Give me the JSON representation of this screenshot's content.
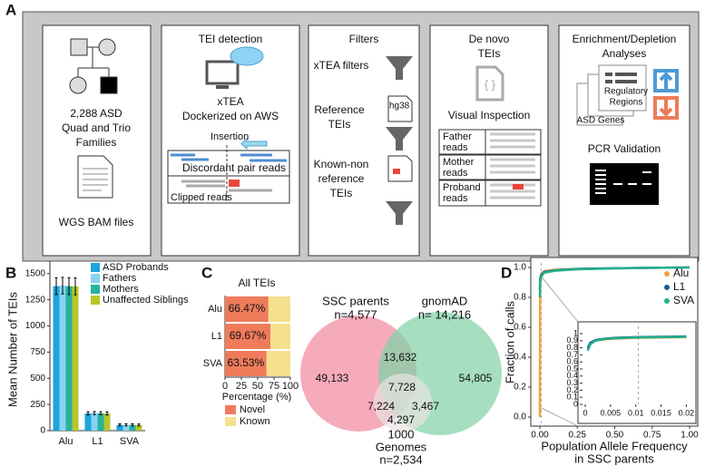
{
  "panel_labels": [
    "A",
    "B",
    "C",
    "D"
  ],
  "panel_a": {
    "family": {
      "lines": [
        "2,288 ASD",
        "Quad and Trio",
        "Families"
      ],
      "caption": "WGS BAM files"
    },
    "detection": {
      "title": "TEI detection",
      "lines": [
        "xTEA",
        "Dockerized on AWS"
      ],
      "insertion": "Insertion",
      "discordant": "Discordant pair reads",
      "clipped": "Clipped reads"
    },
    "filters": {
      "title": "Filters",
      "xtea": "xTEA filters",
      "reference": [
        "Reference",
        "TEIs"
      ],
      "hg38": "hg38",
      "known": [
        "Known-non",
        "reference",
        "TEIs"
      ]
    },
    "denovo": {
      "title": [
        "De novo",
        "TEIs"
      ],
      "inspection": "Visual Inspection",
      "rows": [
        [
          "Father",
          "reads"
        ],
        [
          "Mother",
          "reads"
        ],
        [
          "Proband",
          "reads"
        ]
      ]
    },
    "enrichment": {
      "title": [
        "Enrichment/Depletion",
        "Analyses"
      ],
      "regions": [
        "Regulatory",
        "Regions"
      ],
      "genes": "ASD Genes",
      "pcr": "PCR Validation"
    }
  },
  "chart_data": [
    {
      "type": "bar",
      "ylabel": "Mean Number of TEIs",
      "categories": [
        "Alu",
        "L1",
        "SVA"
      ],
      "series": [
        {
          "name": "ASD Probands",
          "color": "#1da4db",
          "values": [
            1380,
            165,
            55
          ],
          "errors": [
            80,
            15,
            10
          ]
        },
        {
          "name": "Fathers",
          "color": "#86d3ef",
          "values": [
            1385,
            168,
            56
          ],
          "errors": [
            80,
            15,
            10
          ]
        },
        {
          "name": "Mothers",
          "color": "#27b29e",
          "values": [
            1380,
            166,
            55
          ],
          "errors": [
            80,
            15,
            10
          ]
        },
        {
          "name": "Unaffected Siblings",
          "color": "#b7c62c",
          "values": [
            1378,
            164,
            54
          ],
          "errors": [
            80,
            15,
            10
          ]
        }
      ],
      "ylim": [
        0,
        1550
      ],
      "yticks": [
        0,
        250,
        500,
        750,
        1000,
        1250,
        1500
      ]
    },
    {
      "type": "hbar-stacked",
      "title": "All TEIs",
      "xlabel": "Percentage (%)",
      "categories": [
        "Alu",
        "L1",
        "SVA"
      ],
      "series": [
        {
          "name": "Novel",
          "color": "#ef7b5b",
          "values": [
            66.47,
            69.67,
            63.53
          ],
          "value_labels": [
            "66.47%",
            "69.67%",
            "63.53%"
          ]
        },
        {
          "name": "Known",
          "color": "#f6e08e",
          "values": [
            33.53,
            30.33,
            36.47
          ]
        }
      ],
      "xlim": [
        0,
        100
      ],
      "xticks": [
        0,
        25,
        50,
        75,
        100
      ]
    },
    {
      "type": "venn",
      "sets": [
        {
          "name": "SSC parents",
          "size": 4577,
          "size_label": "n=4,577",
          "color": "#f2889e"
        },
        {
          "name": "gnomAD",
          "size": 14216,
          "size_label": "n= 14,216",
          "color": "#7fd2a4"
        },
        {
          "name": [
            "1000",
            "Genomes"
          ],
          "size": 2534,
          "size_label": "n=2,534",
          "color": "#e8e2e2"
        }
      ],
      "regions": [
        49133,
        13632,
        54805,
        7728,
        7224,
        3467,
        4297
      ],
      "region_labels": [
        "49,133",
        "13,632",
        "54,805",
        "7,728",
        "7,224",
        "3,467",
        "4,297"
      ]
    },
    {
      "type": "line",
      "xlabel": [
        "Population Allele Frequency",
        "in SSC parents"
      ],
      "ylabel": "Fraction of calls",
      "x": [
        0,
        0.002,
        0.01,
        0.03,
        0.1,
        0.25,
        0.5,
        0.75,
        1.0
      ],
      "series": [
        {
          "name": "Alu",
          "color": "#f2a33a",
          "values": [
            0,
            0.93,
            0.96,
            0.975,
            0.985,
            0.99,
            0.995,
            0.998,
            1.0
          ]
        },
        {
          "name": "L1",
          "color": "#1c5d8c",
          "values": [
            0.85,
            0.92,
            0.95,
            0.97,
            0.98,
            0.99,
            0.995,
            0.998,
            1.0
          ]
        },
        {
          "name": "SVA",
          "color": "#22b08e",
          "values": [
            0.8,
            0.9,
            0.94,
            0.965,
            0.978,
            0.988,
            0.994,
            0.998,
            1.0
          ]
        }
      ],
      "xlim": [
        0,
        1
      ],
      "ylim": [
        0,
        1
      ],
      "xticks": [
        {
          "value": 0,
          "label": "0.00"
        },
        {
          "value": 0.25,
          "label": "0.25"
        },
        {
          "value": 0.5,
          "label": "0.50"
        },
        {
          "value": 0.75,
          "label": "0.75"
        },
        {
          "value": 1,
          "label": "1.00"
        }
      ],
      "yticks": [
        {
          "value": 0,
          "label": "0.0"
        },
        {
          "value": 0.2,
          "label": "0.2"
        },
        {
          "value": 0.4,
          "label": "0.4"
        },
        {
          "value": 0.6,
          "label": "0.6"
        },
        {
          "value": 0.8,
          "label": "0.8"
        },
        {
          "value": 1,
          "label": "1.0"
        }
      ],
      "legend": "upper right"
    },
    {
      "type": "line",
      "x": [
        0.0005,
        0.001,
        0.002,
        0.004,
        0.006,
        0.01,
        0.015,
        0.02
      ],
      "series": [
        {
          "name": "Alu",
          "color": "#f2a33a",
          "values": [
            0.78,
            0.86,
            0.9,
            0.92,
            0.93,
            0.94,
            0.945,
            0.95
          ]
        },
        {
          "name": "L1",
          "color": "#1c5d8c",
          "values": [
            0.8,
            0.87,
            0.91,
            0.93,
            0.94,
            0.95,
            0.955,
            0.96
          ]
        },
        {
          "name": "SVA",
          "color": "#22b08e",
          "values": [
            0.76,
            0.85,
            0.9,
            0.925,
            0.935,
            0.945,
            0.95,
            0.955
          ]
        }
      ],
      "xlim": [
        0,
        0.021
      ],
      "ylim": [
        0,
        1
      ],
      "xticks": [
        0,
        0.005,
        0.01,
        0.015,
        0.02
      ],
      "yticks": [
        0,
        0.1,
        0.2,
        0.3,
        0.4,
        0.5,
        0.6,
        0.7,
        0.8,
        0.9,
        1
      ]
    }
  ]
}
